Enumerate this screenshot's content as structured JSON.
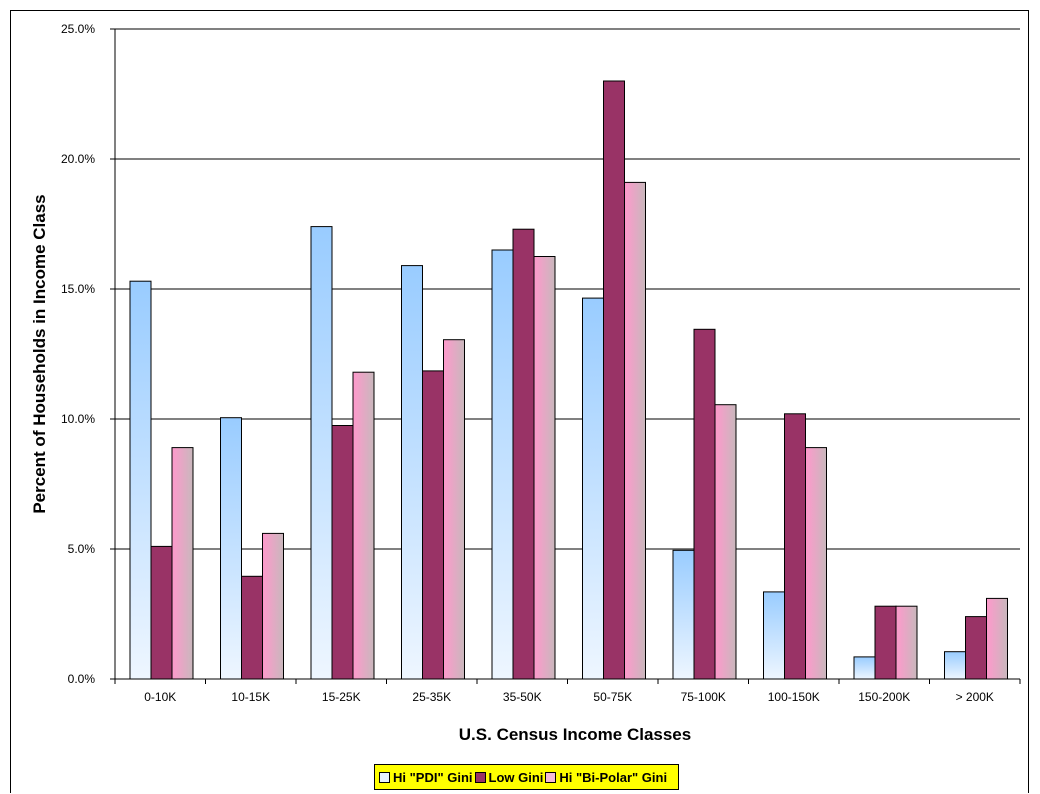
{
  "chart_data": {
    "type": "bar",
    "xlabel": "U.S. Census Income Classes",
    "ylabel": "Percent of Households in Income Class",
    "ylim": [
      0,
      25
    ],
    "yticks": [
      "0.0%",
      "5.0%",
      "10.0%",
      "15.0%",
      "20.0%",
      "25.0%"
    ],
    "grid": true,
    "legend_position": "bottom",
    "categories": [
      "0-10K",
      "10-15K",
      "15-25K",
      "25-35K",
      "35-50K",
      "50-75K",
      "75-100K",
      "100-150K",
      "150-200K",
      "> 200K"
    ],
    "series": [
      {
        "name": "Hi \"PDI\" Gini",
        "values": [
          15.3,
          10.05,
          17.4,
          15.9,
          16.5,
          14.65,
          4.95,
          3.35,
          0.85,
          1.05
        ],
        "color": "#99ccff"
      },
      {
        "name": "Low Gini",
        "values": [
          5.1,
          3.95,
          9.75,
          11.85,
          17.3,
          23.0,
          13.45,
          10.2,
          2.8,
          2.4
        ],
        "color": "#993366"
      },
      {
        "name": "Hi \"Bi-Polar\" Gini",
        "values": [
          8.9,
          5.6,
          11.8,
          13.05,
          16.25,
          19.1,
          10.55,
          8.9,
          2.8,
          3.1
        ],
        "color": "#ff99cc"
      }
    ]
  }
}
